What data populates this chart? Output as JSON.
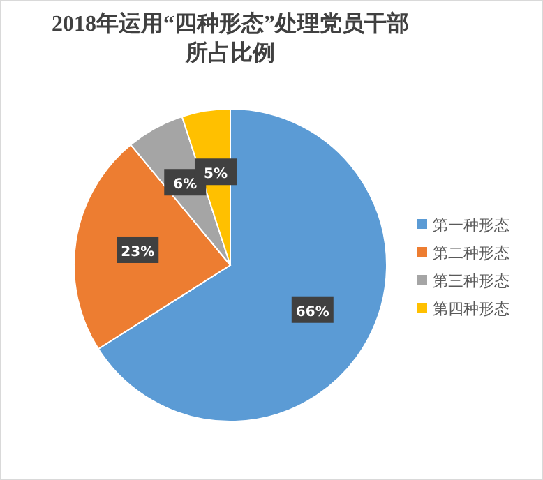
{
  "chart_data": {
    "type": "pie",
    "title": "2018年运用“四种形态”处理党员干部所占比例",
    "categories": [
      "第一种形态",
      "第二种形态",
      "第三种形态",
      "第四种形态"
    ],
    "values": [
      66,
      23,
      6,
      5
    ],
    "colors": [
      "#5b9bd5",
      "#ed7d31",
      "#a5a5a5",
      "#ffc000"
    ],
    "value_labels": [
      "66%",
      "23%",
      "6%",
      "5%"
    ],
    "legend": "right"
  }
}
